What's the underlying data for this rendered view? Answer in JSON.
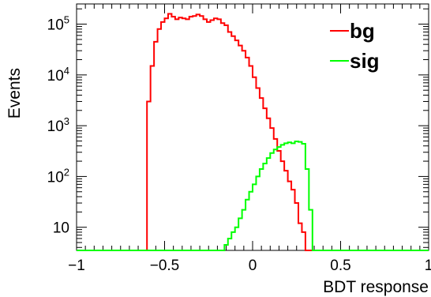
{
  "chart_data": {
    "type": "line",
    "subtype": "step-histogram",
    "title": "",
    "xlabel": "BDT response",
    "ylabel": "Events",
    "xlim": [
      -1,
      1
    ],
    "ylim": [
      3.5,
      250000
    ],
    "yscale": "log",
    "grid": false,
    "legend_position": "top-right",
    "x_ticks": [
      {
        "value": -1,
        "label": "−1"
      },
      {
        "value": -0.5,
        "label": "−0.5"
      },
      {
        "value": 0,
        "label": "0"
      },
      {
        "value": 0.5,
        "label": "0.5"
      },
      {
        "value": 1,
        "label": "1"
      }
    ],
    "y_ticks": [
      {
        "value": 10,
        "base": "10",
        "exp": ""
      },
      {
        "value": 100,
        "base": "10",
        "exp": "2"
      },
      {
        "value": 1000,
        "base": "10",
        "exp": "3"
      },
      {
        "value": 10000,
        "base": "10",
        "exp": "4"
      },
      {
        "value": 100000,
        "base": "10",
        "exp": "5"
      }
    ],
    "bin_edges_range": [
      -1,
      1
    ],
    "bin_width": 0.02,
    "series": [
      {
        "name": "bg",
        "color": "#ff0000",
        "x": [
          -0.59,
          -0.57,
          -0.55,
          -0.53,
          -0.51,
          -0.49,
          -0.47,
          -0.45,
          -0.43,
          -0.41,
          -0.39,
          -0.37,
          -0.35,
          -0.33,
          -0.31,
          -0.29,
          -0.27,
          -0.25,
          -0.23,
          -0.21,
          -0.19,
          -0.17,
          -0.15,
          -0.13,
          -0.11,
          -0.09,
          -0.07,
          -0.05,
          -0.03,
          -0.01,
          0.01,
          0.03,
          0.05,
          0.07,
          0.09,
          0.11,
          0.13,
          0.15,
          0.17,
          0.19,
          0.21,
          0.23,
          0.25,
          0.27,
          0.29,
          0.31
        ],
        "values": [
          3000,
          15000,
          45000,
          80000,
          110000,
          130000,
          160000,
          140000,
          125000,
          135000,
          130000,
          125000,
          140000,
          145000,
          155000,
          145000,
          125000,
          110000,
          120000,
          130000,
          125000,
          105000,
          95000,
          70000,
          58000,
          48000,
          38000,
          30000,
          22000,
          15000,
          9000,
          5500,
          3500,
          2200,
          1400,
          900,
          550,
          320,
          200,
          130,
          80,
          55,
          30,
          12,
          8,
          3
        ]
      },
      {
        "name": "sig",
        "color": "#00ff00",
        "x": [
          -0.15,
          -0.13,
          -0.11,
          -0.09,
          -0.07,
          -0.05,
          -0.03,
          -0.01,
          0.01,
          0.03,
          0.05,
          0.07,
          0.09,
          0.11,
          0.13,
          0.15,
          0.17,
          0.19,
          0.21,
          0.23,
          0.25,
          0.27,
          0.29,
          0.31,
          0.33,
          0.35
        ],
        "values": [
          4.5,
          6,
          8,
          10,
          15,
          22,
          35,
          50,
          70,
          100,
          140,
          180,
          230,
          290,
          340,
          380,
          420,
          450,
          470,
          450,
          490,
          480,
          440,
          140,
          22,
          3
        ]
      }
    ]
  }
}
